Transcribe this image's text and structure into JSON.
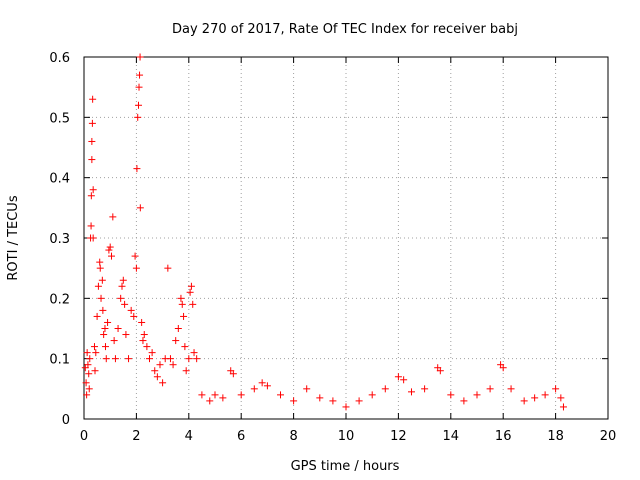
{
  "chart_data": {
    "type": "scatter",
    "title": "Day 270 of 2017, Rate Of TEC Index for receiver babj",
    "xlabel": "GPS time / hours",
    "ylabel": "ROTI / TECUs",
    "xlim": [
      0,
      20
    ],
    "ylim": [
      0,
      0.6
    ],
    "xticks": [
      0,
      2,
      4,
      6,
      8,
      10,
      12,
      14,
      16,
      18,
      20
    ],
    "yticks": [
      0,
      0.1,
      0.2,
      0.3,
      0.4,
      0.5,
      0.6
    ],
    "xtick_labels": [
      "0",
      "2",
      "4",
      "6",
      "8",
      "10",
      "12",
      "14",
      "16",
      "18",
      "20"
    ],
    "ytick_labels": [
      "0",
      "0.1",
      "0.2",
      "0.3",
      "0.4",
      "0.5",
      "0.6"
    ],
    "grid": true,
    "marker": "+",
    "color": "#ff0000",
    "series": [
      {
        "name": "ROTI",
        "points": [
          [
            0.05,
            0.085
          ],
          [
            0.08,
            0.06
          ],
          [
            0.1,
            0.04
          ],
          [
            0.12,
            0.11
          ],
          [
            0.15,
            0.09
          ],
          [
            0.18,
            0.075
          ],
          [
            0.2,
            0.05
          ],
          [
            0.22,
            0.1
          ],
          [
            0.25,
            0.3
          ],
          [
            0.27,
            0.32
          ],
          [
            0.28,
            0.37
          ],
          [
            0.3,
            0.43
          ],
          [
            0.3,
            0.46
          ],
          [
            0.32,
            0.49
          ],
          [
            0.33,
            0.53
          ],
          [
            0.35,
            0.38
          ],
          [
            0.35,
            0.3
          ],
          [
            0.4,
            0.12
          ],
          [
            0.42,
            0.08
          ],
          [
            0.45,
            0.11
          ],
          [
            0.5,
            0.17
          ],
          [
            0.55,
            0.22
          ],
          [
            0.6,
            0.26
          ],
          [
            0.62,
            0.25
          ],
          [
            0.65,
            0.2
          ],
          [
            0.7,
            0.23
          ],
          [
            0.72,
            0.18
          ],
          [
            0.75,
            0.14
          ],
          [
            0.8,
            0.15
          ],
          [
            0.82,
            0.12
          ],
          [
            0.85,
            0.1
          ],
          [
            0.9,
            0.16
          ],
          [
            0.95,
            0.28
          ],
          [
            1.0,
            0.285
          ],
          [
            1.05,
            0.27
          ],
          [
            1.1,
            0.335
          ],
          [
            1.15,
            0.13
          ],
          [
            1.2,
            0.1
          ],
          [
            1.3,
            0.15
          ],
          [
            1.4,
            0.2
          ],
          [
            1.45,
            0.22
          ],
          [
            1.5,
            0.23
          ],
          [
            1.55,
            0.19
          ],
          [
            1.6,
            0.14
          ],
          [
            1.7,
            0.1
          ],
          [
            1.8,
            0.18
          ],
          [
            1.9,
            0.17
          ],
          [
            1.95,
            0.27
          ],
          [
            2.0,
            0.25
          ],
          [
            2.02,
            0.415
          ],
          [
            2.05,
            0.5
          ],
          [
            2.08,
            0.52
          ],
          [
            2.1,
            0.55
          ],
          [
            2.12,
            0.57
          ],
          [
            2.14,
            0.6
          ],
          [
            2.15,
            0.35
          ],
          [
            2.2,
            0.16
          ],
          [
            2.25,
            0.13
          ],
          [
            2.3,
            0.14
          ],
          [
            2.4,
            0.12
          ],
          [
            2.5,
            0.1
          ],
          [
            2.6,
            0.11
          ],
          [
            2.7,
            0.08
          ],
          [
            2.8,
            0.07
          ],
          [
            2.9,
            0.09
          ],
          [
            3.0,
            0.06
          ],
          [
            3.1,
            0.1
          ],
          [
            3.2,
            0.25
          ],
          [
            3.3,
            0.1
          ],
          [
            3.4,
            0.09
          ],
          [
            3.5,
            0.13
          ],
          [
            3.6,
            0.15
          ],
          [
            3.7,
            0.2
          ],
          [
            3.75,
            0.19
          ],
          [
            3.8,
            0.17
          ],
          [
            3.85,
            0.12
          ],
          [
            3.9,
            0.08
          ],
          [
            4.0,
            0.1
          ],
          [
            4.05,
            0.21
          ],
          [
            4.1,
            0.22
          ],
          [
            4.15,
            0.19
          ],
          [
            4.2,
            0.11
          ],
          [
            4.3,
            0.1
          ],
          [
            4.5,
            0.04
          ],
          [
            4.8,
            0.03
          ],
          [
            5.0,
            0.04
          ],
          [
            5.3,
            0.035
          ],
          [
            5.6,
            0.08
          ],
          [
            5.7,
            0.075
          ],
          [
            6.0,
            0.04
          ],
          [
            6.5,
            0.05
          ],
          [
            6.8,
            0.06
          ],
          [
            7.0,
            0.055
          ],
          [
            7.5,
            0.04
          ],
          [
            8.0,
            0.03
          ],
          [
            8.5,
            0.05
          ],
          [
            9.0,
            0.035
          ],
          [
            9.5,
            0.03
          ],
          [
            10.0,
            0.02
          ],
          [
            10.5,
            0.03
          ],
          [
            11.0,
            0.04
          ],
          [
            11.5,
            0.05
          ],
          [
            12.0,
            0.07
          ],
          [
            12.2,
            0.065
          ],
          [
            12.5,
            0.045
          ],
          [
            13.0,
            0.05
          ],
          [
            13.5,
            0.085
          ],
          [
            13.6,
            0.08
          ],
          [
            14.0,
            0.04
          ],
          [
            14.5,
            0.03
          ],
          [
            15.0,
            0.04
          ],
          [
            15.5,
            0.05
          ],
          [
            15.9,
            0.09
          ],
          [
            16.0,
            0.085
          ],
          [
            16.3,
            0.05
          ],
          [
            16.8,
            0.03
          ],
          [
            17.2,
            0.035
          ],
          [
            17.6,
            0.04
          ],
          [
            18.0,
            0.05
          ],
          [
            18.2,
            0.035
          ],
          [
            18.3,
            0.02
          ]
        ]
      }
    ]
  }
}
